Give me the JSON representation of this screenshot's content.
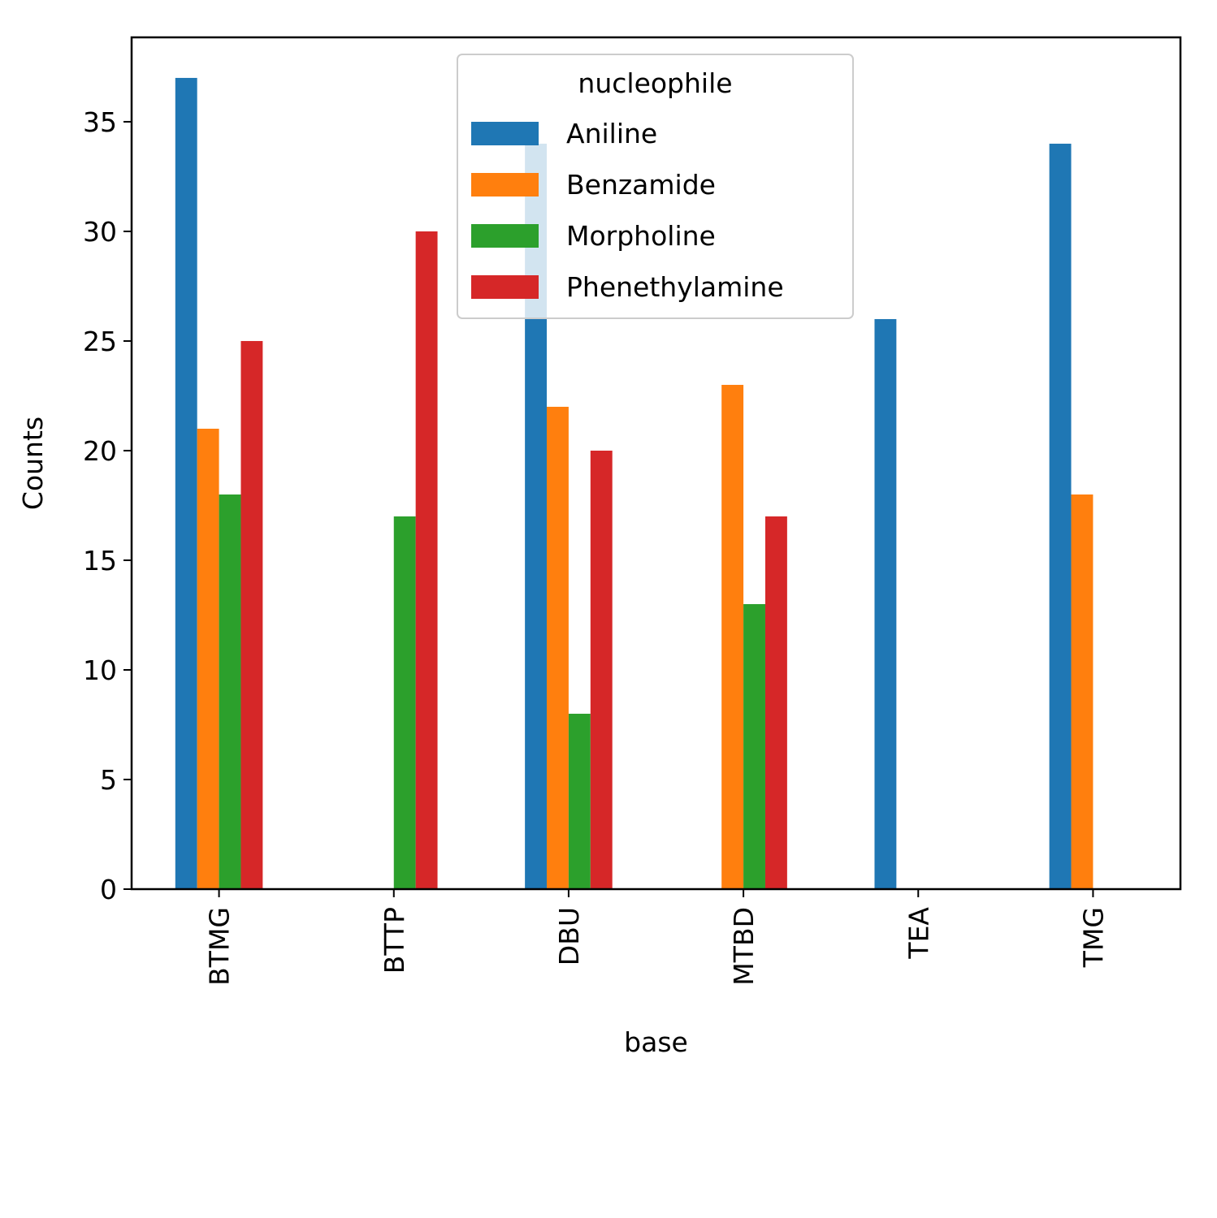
{
  "chart_data": {
    "type": "bar",
    "xlabel": "base",
    "ylabel": "Counts",
    "categories": [
      "BTMG",
      "BTTP",
      "DBU",
      "MTBD",
      "TEA",
      "TMG"
    ],
    "ylim": [
      0,
      38.85
    ],
    "yticks": [
      0,
      5,
      10,
      15,
      20,
      25,
      30,
      35
    ],
    "legend": {
      "title": "nucleophile",
      "placement": "upper-center"
    },
    "series": [
      {
        "name": "Aniline",
        "color": "#1f77b4",
        "values": [
          37,
          null,
          34,
          null,
          26,
          34
        ]
      },
      {
        "name": "Benzamide",
        "color": "#ff7f0e",
        "values": [
          21,
          null,
          22,
          23,
          null,
          18
        ]
      },
      {
        "name": "Morpholine",
        "color": "#2ca02c",
        "values": [
          18,
          17,
          8,
          13,
          null,
          null
        ]
      },
      {
        "name": "Phenethylamine",
        "color": "#d62728",
        "values": [
          25,
          30,
          20,
          17,
          null,
          null
        ]
      }
    ]
  }
}
